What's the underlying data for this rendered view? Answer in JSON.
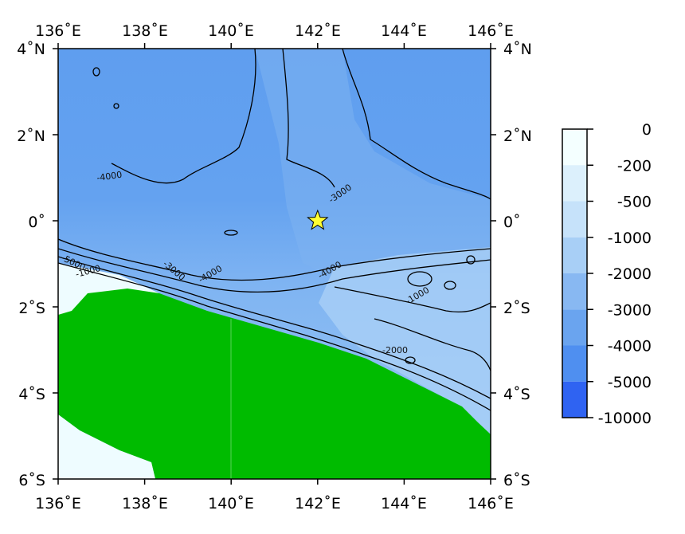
{
  "map": {
    "lon_range": [
      136,
      146
    ],
    "lat_range": [
      -6,
      4
    ],
    "lon_ticks": [
      "136˚E",
      "138˚E",
      "140˚E",
      "142˚E",
      "144˚E",
      "146˚E"
    ],
    "lat_ticks_left": [
      "4˚N",
      "2˚N",
      "0˚",
      "2˚S",
      "4˚S",
      "6˚S"
    ],
    "lat_ticks_right": [
      "4˚N",
      "2˚N",
      "0˚",
      "2˚S",
      "4˚S",
      "6˚S"
    ],
    "land_color": "#00bb00",
    "marker": {
      "icon": "star-icon",
      "lon": 142,
      "lat": 0,
      "color": "#ffff33"
    },
    "contour_labels": [
      "-4000",
      "-3000",
      "-4000",
      "-3000",
      "-4000",
      "-5000",
      "-1000",
      "-1000",
      "-2000"
    ]
  },
  "colorbar": {
    "labels": [
      "0",
      "-200",
      "-500",
      "-1000",
      "-2000",
      "-3000",
      "-4000",
      "-5000",
      "-10000"
    ],
    "colors": [
      "#f4ffff",
      "#dcf0fc",
      "#c6e2fa",
      "#a8cff6",
      "#88b8f2",
      "#6aa4ef",
      "#4f8ff0",
      "#2f63f2",
      "#0a2ff5"
    ]
  }
}
